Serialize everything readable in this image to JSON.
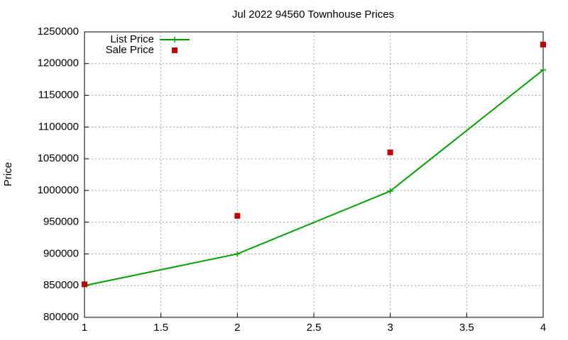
{
  "chart_data": {
    "type": "line",
    "title": "Jul 2022 94560 Townhouse Prices",
    "y_label": "Price",
    "x": [
      1,
      2,
      3,
      4
    ],
    "series": [
      {
        "name": "List Price",
        "color": "#00a000",
        "mode": "lines+points",
        "values": [
          850000,
          900000,
          999000,
          1190000
        ]
      },
      {
        "name": "Sale Price",
        "color": "#c00000",
        "mode": "points",
        "values": [
          852000,
          960000,
          1060000,
          1230000
        ]
      }
    ],
    "xlim": [
      1,
      4
    ],
    "xticks": [
      1,
      1.5,
      2,
      2.5,
      3,
      3.5,
      4
    ],
    "ylim": [
      800000,
      1250000
    ],
    "yticks": [
      800000,
      850000,
      900000,
      950000,
      1000000,
      1050000,
      1100000,
      1150000,
      1200000,
      1250000
    ],
    "grid": true,
    "legend": "top-left"
  }
}
